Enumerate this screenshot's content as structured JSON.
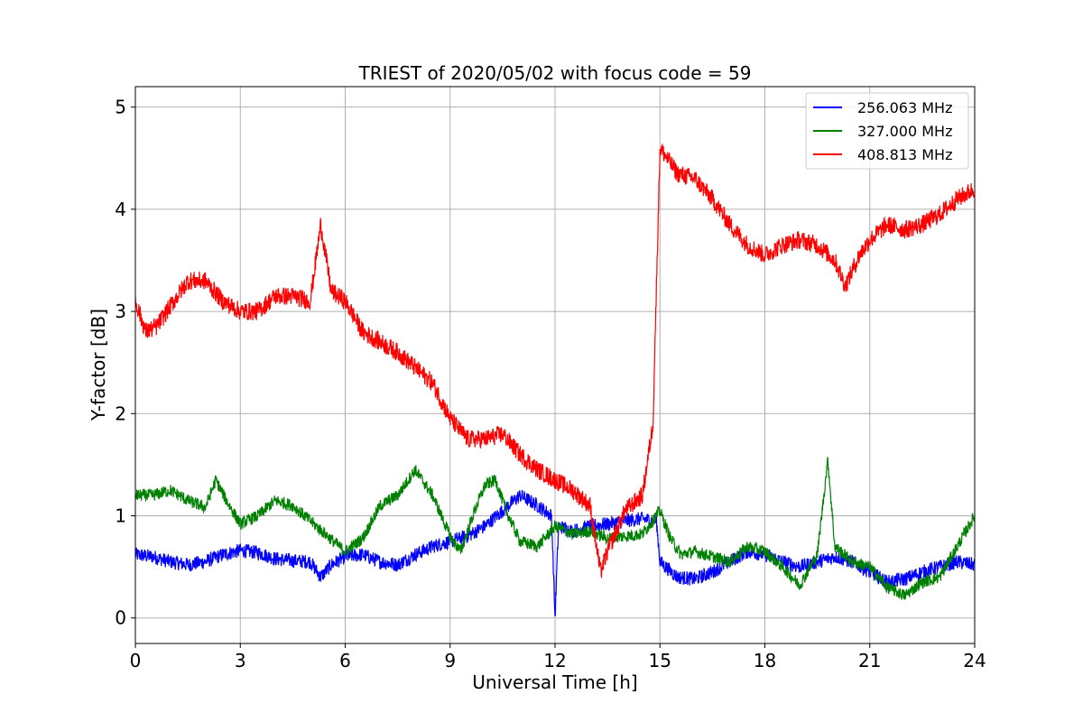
{
  "chart_data": {
    "type": "line",
    "title": "TRIEST of 2020/05/02 with focus code = 59",
    "xlabel": "Universal Time [h]",
    "ylabel": "Y-factor [dB]",
    "xlim": [
      0,
      24
    ],
    "ylim": [
      -0.25,
      5.2
    ],
    "xticks": [
      0,
      3,
      6,
      9,
      12,
      15,
      18,
      21,
      24
    ],
    "yticks": [
      0,
      1,
      2,
      3,
      4,
      5
    ],
    "grid": true,
    "legend_position": "top-right",
    "series": [
      {
        "name": "256.063 MHz",
        "color": "#0000ff",
        "noise": 0.07,
        "points": [
          [
            0.0,
            0.62
          ],
          [
            0.5,
            0.6
          ],
          [
            1.0,
            0.55
          ],
          [
            1.5,
            0.52
          ],
          [
            2.0,
            0.55
          ],
          [
            2.5,
            0.62
          ],
          [
            3.0,
            0.66
          ],
          [
            3.5,
            0.64
          ],
          [
            4.0,
            0.58
          ],
          [
            4.5,
            0.56
          ],
          [
            5.0,
            0.55
          ],
          [
            5.3,
            0.4
          ],
          [
            5.6,
            0.52
          ],
          [
            6.0,
            0.6
          ],
          [
            6.5,
            0.62
          ],
          [
            7.0,
            0.55
          ],
          [
            7.5,
            0.52
          ],
          [
            8.0,
            0.62
          ],
          [
            8.5,
            0.7
          ],
          [
            9.0,
            0.75
          ],
          [
            9.5,
            0.8
          ],
          [
            10.0,
            0.9
          ],
          [
            10.5,
            1.05
          ],
          [
            11.0,
            1.2
          ],
          [
            11.5,
            1.1
          ],
          [
            11.9,
            1.0
          ],
          [
            12.0,
            0.0
          ],
          [
            12.1,
            0.9
          ],
          [
            12.5,
            0.85
          ],
          [
            13.0,
            0.9
          ],
          [
            13.5,
            0.92
          ],
          [
            14.0,
            0.95
          ],
          [
            14.5,
            0.97
          ],
          [
            14.9,
            0.95
          ],
          [
            15.0,
            0.55
          ],
          [
            15.5,
            0.4
          ],
          [
            16.0,
            0.38
          ],
          [
            16.5,
            0.45
          ],
          [
            17.0,
            0.55
          ],
          [
            17.5,
            0.65
          ],
          [
            18.0,
            0.62
          ],
          [
            18.5,
            0.55
          ],
          [
            19.0,
            0.5
          ],
          [
            19.5,
            0.55
          ],
          [
            20.0,
            0.6
          ],
          [
            20.5,
            0.55
          ],
          [
            21.0,
            0.45
          ],
          [
            21.5,
            0.35
          ],
          [
            22.0,
            0.38
          ],
          [
            22.5,
            0.45
          ],
          [
            23.0,
            0.5
          ],
          [
            23.5,
            0.55
          ],
          [
            24.0,
            0.52
          ]
        ]
      },
      {
        "name": "327.000 MHz",
        "color": "#008000",
        "noise": 0.06,
        "points": [
          [
            0.0,
            1.2
          ],
          [
            0.5,
            1.2
          ],
          [
            1.0,
            1.25
          ],
          [
            1.5,
            1.15
          ],
          [
            2.0,
            1.08
          ],
          [
            2.3,
            1.35
          ],
          [
            2.6,
            1.15
          ],
          [
            3.0,
            0.92
          ],
          [
            3.5,
            1.0
          ],
          [
            4.0,
            1.15
          ],
          [
            4.5,
            1.1
          ],
          [
            5.0,
            0.95
          ],
          [
            5.5,
            0.8
          ],
          [
            6.0,
            0.65
          ],
          [
            6.5,
            0.78
          ],
          [
            7.0,
            1.1
          ],
          [
            7.5,
            1.2
          ],
          [
            8.0,
            1.45
          ],
          [
            8.5,
            1.2
          ],
          [
            9.0,
            0.8
          ],
          [
            9.3,
            0.65
          ],
          [
            9.7,
            1.05
          ],
          [
            10.0,
            1.3
          ],
          [
            10.3,
            1.35
          ],
          [
            10.6,
            1.05
          ],
          [
            11.0,
            0.75
          ],
          [
            11.5,
            0.7
          ],
          [
            12.0,
            0.9
          ],
          [
            12.5,
            0.82
          ],
          [
            13.0,
            0.85
          ],
          [
            13.5,
            0.78
          ],
          [
            14.0,
            0.8
          ],
          [
            14.5,
            0.82
          ],
          [
            15.0,
            1.05
          ],
          [
            15.3,
            0.78
          ],
          [
            15.6,
            0.62
          ],
          [
            16.0,
            0.65
          ],
          [
            16.5,
            0.6
          ],
          [
            17.0,
            0.55
          ],
          [
            17.5,
            0.7
          ],
          [
            18.0,
            0.65
          ],
          [
            18.5,
            0.5
          ],
          [
            19.0,
            0.32
          ],
          [
            19.5,
            0.62
          ],
          [
            19.8,
            1.55
          ],
          [
            20.0,
            0.7
          ],
          [
            20.5,
            0.55
          ],
          [
            21.0,
            0.5
          ],
          [
            21.5,
            0.3
          ],
          [
            22.0,
            0.22
          ],
          [
            22.5,
            0.35
          ],
          [
            23.0,
            0.4
          ],
          [
            23.5,
            0.7
          ],
          [
            24.0,
            1.0
          ]
        ]
      },
      {
        "name": "408.813 MHz",
        "color": "#ff0000",
        "noise": 0.09,
        "points": [
          [
            0.0,
            3.1
          ],
          [
            0.3,
            2.8
          ],
          [
            0.6,
            2.85
          ],
          [
            1.0,
            3.05
          ],
          [
            1.5,
            3.3
          ],
          [
            2.0,
            3.3
          ],
          [
            2.5,
            3.1
          ],
          [
            3.0,
            3.0
          ],
          [
            3.5,
            3.0
          ],
          [
            4.0,
            3.15
          ],
          [
            4.5,
            3.15
          ],
          [
            5.0,
            3.1
          ],
          [
            5.3,
            3.85
          ],
          [
            5.6,
            3.2
          ],
          [
            6.0,
            3.1
          ],
          [
            6.5,
            2.8
          ],
          [
            7.0,
            2.7
          ],
          [
            7.5,
            2.6
          ],
          [
            8.0,
            2.45
          ],
          [
            8.5,
            2.3
          ],
          [
            9.0,
            1.95
          ],
          [
            9.5,
            1.75
          ],
          [
            10.0,
            1.75
          ],
          [
            10.5,
            1.8
          ],
          [
            11.0,
            1.6
          ],
          [
            11.5,
            1.45
          ],
          [
            12.0,
            1.35
          ],
          [
            12.5,
            1.25
          ],
          [
            13.0,
            1.1
          ],
          [
            13.3,
            0.45
          ],
          [
            13.5,
            0.65
          ],
          [
            14.0,
            1.05
          ],
          [
            14.5,
            1.2
          ],
          [
            14.8,
            1.9
          ],
          [
            15.0,
            4.6
          ],
          [
            15.5,
            4.35
          ],
          [
            16.0,
            4.3
          ],
          [
            16.5,
            4.1
          ],
          [
            17.0,
            3.85
          ],
          [
            17.5,
            3.65
          ],
          [
            18.0,
            3.55
          ],
          [
            18.5,
            3.65
          ],
          [
            19.0,
            3.7
          ],
          [
            19.5,
            3.65
          ],
          [
            20.0,
            3.5
          ],
          [
            20.3,
            3.25
          ],
          [
            20.7,
            3.55
          ],
          [
            21.0,
            3.7
          ],
          [
            21.5,
            3.85
          ],
          [
            22.0,
            3.8
          ],
          [
            22.5,
            3.85
          ],
          [
            23.0,
            3.95
          ],
          [
            23.5,
            4.1
          ],
          [
            24.0,
            4.2
          ]
        ]
      }
    ]
  }
}
